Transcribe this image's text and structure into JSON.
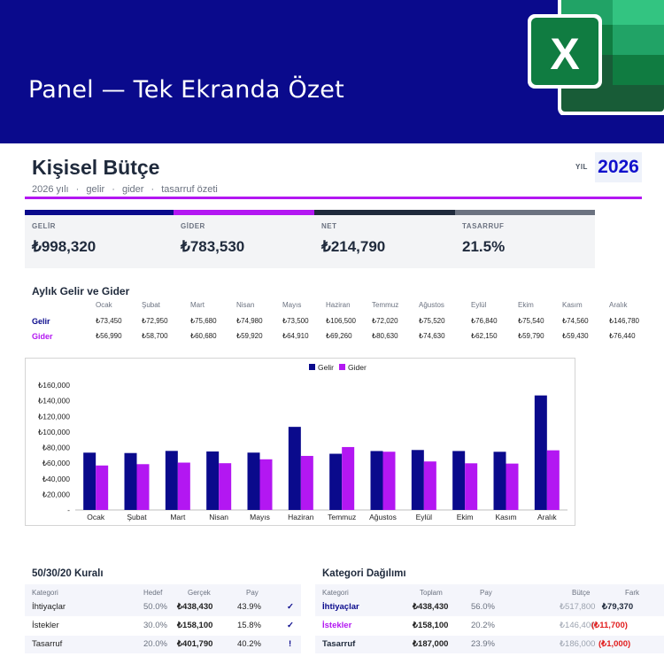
{
  "banner": {
    "title": "Panel — Tek Ekranda Özet",
    "logo_letter": "X",
    "icon": "excel-logo-icon"
  },
  "header": {
    "title": "Kişisel Bütçe",
    "subtitle_parts": [
      "2026 yılı",
      "gelir",
      "gider",
      "tasarruf özeti"
    ],
    "year_label": "YIL",
    "year_value": "2026"
  },
  "kpis": [
    {
      "label": "GELİR",
      "value": "₺998,320",
      "color": "#0a0a8c"
    },
    {
      "label": "GİDER",
      "value": "₺783,530",
      "color": "#b317f2"
    },
    {
      "label": "NET",
      "value": "₺214,790",
      "color": "#1f2a3c"
    },
    {
      "label": "TASARRUF",
      "value": "21.5%",
      "color": "#6b7280"
    }
  ],
  "monthly": {
    "title": "Aylık Gelir ve Gider",
    "months": [
      "Ocak",
      "Şubat",
      "Mart",
      "Nisan",
      "Mayıs",
      "Haziran",
      "Temmuz",
      "Ağustos",
      "Eylül",
      "Ekim",
      "Kasım",
      "Aralık"
    ],
    "income_label": "Gelir",
    "expense_label": "Gider",
    "income": [
      "₺73,450",
      "₺72,950",
      "₺75,680",
      "₺74,980",
      "₺73,500",
      "₺106,500",
      "₺72,020",
      "₺75,520",
      "₺76,840",
      "₺75,540",
      "₺74,560",
      "₺146,780"
    ],
    "expense": [
      "₺56,990",
      "₺58,700",
      "₺60,680",
      "₺59,920",
      "₺64,910",
      "₺69,260",
      "₺80,630",
      "₺74,630",
      "₺62,150",
      "₺59,790",
      "₺59,430",
      "₺76,440"
    ]
  },
  "chart_data": {
    "type": "bar",
    "categories": [
      "Ocak",
      "Şubat",
      "Mart",
      "Nisan",
      "Mayıs",
      "Haziran",
      "Temmuz",
      "Ağustos",
      "Eylül",
      "Ekim",
      "Kasım",
      "Aralık"
    ],
    "series": [
      {
        "name": "Gelir",
        "color": "#0a0a8c",
        "values": [
          73450,
          72950,
          75680,
          74980,
          73500,
          106500,
          72020,
          75520,
          76840,
          75540,
          74560,
          146780
        ]
      },
      {
        "name": "Gider",
        "color": "#b317f2",
        "values": [
          56990,
          58700,
          60680,
          59920,
          64910,
          69260,
          80630,
          74630,
          62150,
          59790,
          59430,
          76440
        ]
      }
    ],
    "ylim": [
      0,
      160000
    ],
    "yticks": [
      0,
      20000,
      40000,
      60000,
      80000,
      100000,
      120000,
      140000,
      160000
    ],
    "ytick_labels": [
      "-",
      "₺20,000",
      "₺40,000",
      "₺60,000",
      "₺80,000",
      "₺100,000",
      "₺120,000",
      "₺140,000",
      "₺160,000"
    ],
    "legend": "top-center",
    "grid": false
  },
  "rule": {
    "title": "50/30/20 Kuralı",
    "headers": [
      "Kategori",
      "Hedef",
      "Gerçek",
      "Pay"
    ],
    "rows": [
      {
        "cat": "İhtiyaçlar",
        "target": "50.0%",
        "actual": "₺438,430",
        "share": "43.9%",
        "mark": "✓"
      },
      {
        "cat": "İstekler",
        "target": "30.0%",
        "actual": "₺158,100",
        "share": "15.8%",
        "mark": "✓"
      },
      {
        "cat": "Tasarruf",
        "target": "20.0%",
        "actual": "₺401,790",
        "share": "40.2%",
        "mark": "!"
      }
    ]
  },
  "categories": {
    "title": "Kategori Dağılımı",
    "headers": [
      "Kategori",
      "Toplam",
      "Pay",
      "Bütçe",
      "Fark"
    ],
    "rows": [
      {
        "cat": "İhtiyaçlar",
        "color": "#0a0a8c",
        "total": "₺438,430",
        "share": "56.0%",
        "budget": "₺517,800",
        "diff": "₺79,370",
        "diff_color": "#1f2a3c"
      },
      {
        "cat": "İstekler",
        "color": "#b317f2",
        "total": "₺158,100",
        "share": "20.2%",
        "budget": "₺146,400",
        "diff": "(₺11,700)",
        "diff_color": "#e11d1d"
      },
      {
        "cat": "Tasarruf",
        "color": "#1f2a3c",
        "total": "₺187,000",
        "share": "23.9%",
        "budget": "₺186,000",
        "diff": "(₺1,000)",
        "diff_color": "#e11d1d"
      }
    ]
  }
}
